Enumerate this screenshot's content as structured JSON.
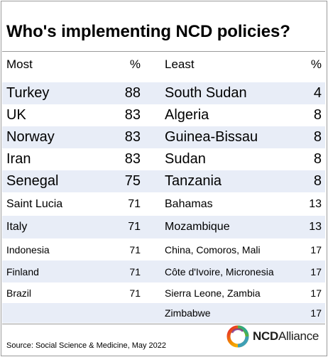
{
  "title": "Who's implementing NCD policies?",
  "header": {
    "most": "Most",
    "pct_left": "%",
    "least": "Least",
    "pct_right": "%"
  },
  "rows": [
    {
      "most": "Turkey",
      "most_pct": "88",
      "least": "South Sudan",
      "least_pct": "4"
    },
    {
      "most": "UK",
      "most_pct": "83",
      "least": "Algeria",
      "least_pct": "8"
    },
    {
      "most": "Norway",
      "most_pct": "83",
      "least": "Guinea-Bissau",
      "least_pct": "8"
    },
    {
      "most": "Iran",
      "most_pct": "83",
      "least": "Sudan",
      "least_pct": "8"
    },
    {
      "most": "Senegal",
      "most_pct": "75",
      "least": "Tanzania",
      "least_pct": "8"
    },
    {
      "most": "Saint Lucia",
      "most_pct": "71",
      "least": "Bahamas",
      "least_pct": "13"
    },
    {
      "most": "Italy",
      "most_pct": "71",
      "least": "Mozambique",
      "least_pct": "13"
    },
    {
      "most": "Indonesia",
      "most_pct": "71",
      "least": "China, Comoros, Mali",
      "least_pct": "17"
    },
    {
      "most": "Finland",
      "most_pct": "71",
      "least": "Côte d'Ivoire, Micronesia",
      "least_pct": "17"
    },
    {
      "most": "Brazil",
      "most_pct": "71",
      "least": "Sierra Leone, Zambia",
      "least_pct": "17"
    },
    {
      "most": "",
      "most_pct": "",
      "least": "Zimbabwe",
      "least_pct": "17"
    }
  ],
  "source": "Source: Social Science & Medicine, May 2022",
  "logo": {
    "icon": "ncd-alliance-ring-logo",
    "ncd": "NCD",
    "alliance": "Alliance"
  },
  "colors": {
    "row_shade": "#e8edf7",
    "rule": "#9a9a9a"
  }
}
